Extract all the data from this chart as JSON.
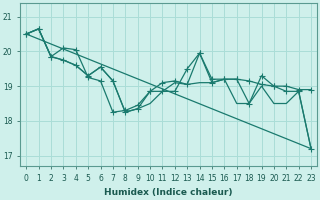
{
  "xlabel": "Humidex (Indice chaleur)",
  "background_color": "#cff0eb",
  "grid_color": "#aaddd7",
  "line_color": "#1a7a6e",
  "xlim": [
    -0.5,
    23.5
  ],
  "ylim": [
    16.7,
    21.4
  ],
  "yticks": [
    17,
    18,
    19,
    20,
    21
  ],
  "xticks": [
    0,
    1,
    2,
    3,
    4,
    5,
    6,
    7,
    8,
    9,
    10,
    11,
    12,
    13,
    14,
    15,
    16,
    17,
    18,
    19,
    20,
    21,
    22,
    23
  ],
  "series": [
    {
      "x": [
        0,
        1,
        2,
        3,
        4,
        5,
        6,
        7,
        8,
        9,
        10,
        11,
        12,
        13,
        14,
        15,
        16,
        17,
        18,
        19,
        20,
        21,
        22,
        23
      ],
      "y": [
        20.5,
        20.65,
        19.85,
        19.75,
        19.6,
        19.3,
        19.55,
        19.15,
        18.25,
        18.35,
        18.85,
        19.1,
        19.15,
        19.05,
        19.95,
        19.1,
        19.2,
        19.2,
        19.15,
        19.05,
        19.0,
        19.0,
        18.9,
        18.9
      ],
      "marker": "+",
      "markersize": 4,
      "lw": 0.9
    },
    {
      "x": [
        0,
        1,
        2,
        3,
        4,
        5,
        6,
        7,
        8,
        9,
        10,
        11,
        12,
        13,
        14,
        15,
        16,
        17,
        18,
        19,
        20,
        21,
        22,
        23
      ],
      "y": [
        20.5,
        20.65,
        19.85,
        20.1,
        20.05,
        19.25,
        19.15,
        18.25,
        18.3,
        18.45,
        18.85,
        18.85,
        18.85,
        19.5,
        19.95,
        19.2,
        19.2,
        19.2,
        18.5,
        19.3,
        19.0,
        18.85,
        18.85,
        17.2
      ],
      "marker": "+",
      "markersize": 4,
      "lw": 0.9
    },
    {
      "x": [
        0,
        23
      ],
      "y": [
        20.5,
        17.2
      ],
      "marker": null,
      "markersize": 0,
      "lw": 0.9
    },
    {
      "x": [
        0,
        1,
        2,
        3,
        4,
        5,
        6,
        7,
        8,
        9,
        10,
        11,
        12,
        13,
        14,
        15,
        16,
        17,
        18,
        19,
        20,
        21,
        22,
        23
      ],
      "y": [
        20.5,
        20.65,
        19.85,
        19.75,
        19.6,
        19.3,
        19.55,
        19.15,
        18.25,
        18.35,
        18.5,
        18.85,
        19.1,
        19.05,
        19.1,
        19.1,
        19.2,
        18.5,
        18.5,
        19.0,
        18.5,
        18.5,
        18.85,
        17.2
      ],
      "marker": null,
      "markersize": 0,
      "lw": 0.9
    }
  ]
}
